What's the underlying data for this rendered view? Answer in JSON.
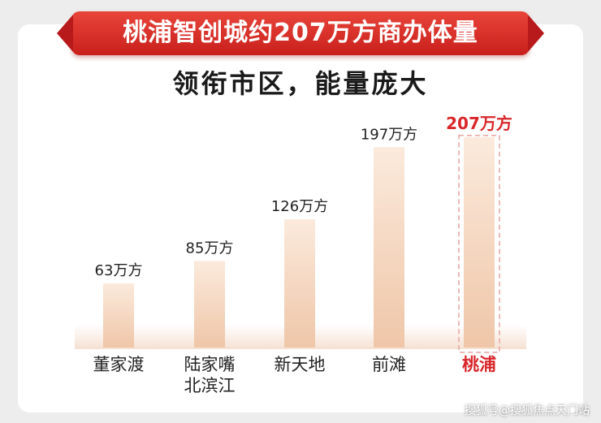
{
  "title": "桃浦智创城约207万方商办体量",
  "subtitle": "领衔市区，能量庞大",
  "watermark": "搜狐号@搜狐焦点天门站",
  "colors": {
    "title_red": "#d22a24",
    "highlight_red": "#d9262a",
    "bar_top": "#f9e6d6",
    "bar_bottom": "#f0c9ad",
    "label_dark": "#222222"
  },
  "chart_data": {
    "type": "bar",
    "title": "桃浦智创城约207万方商办体量",
    "subtitle": "领衔市区，能量庞大",
    "categories": [
      "董家渡",
      "陆家嘴\n北滨江",
      "新天地",
      "前滩",
      "桃浦"
    ],
    "values": [
      63,
      85,
      126,
      197,
      207
    ],
    "value_labels": [
      "63万方",
      "85万方",
      "126万方",
      "197万方",
      "207万方"
    ],
    "unit": "万方",
    "highlight_index": 4,
    "ylim": [
      0,
      210
    ],
    "grid": false,
    "legend": "none"
  }
}
